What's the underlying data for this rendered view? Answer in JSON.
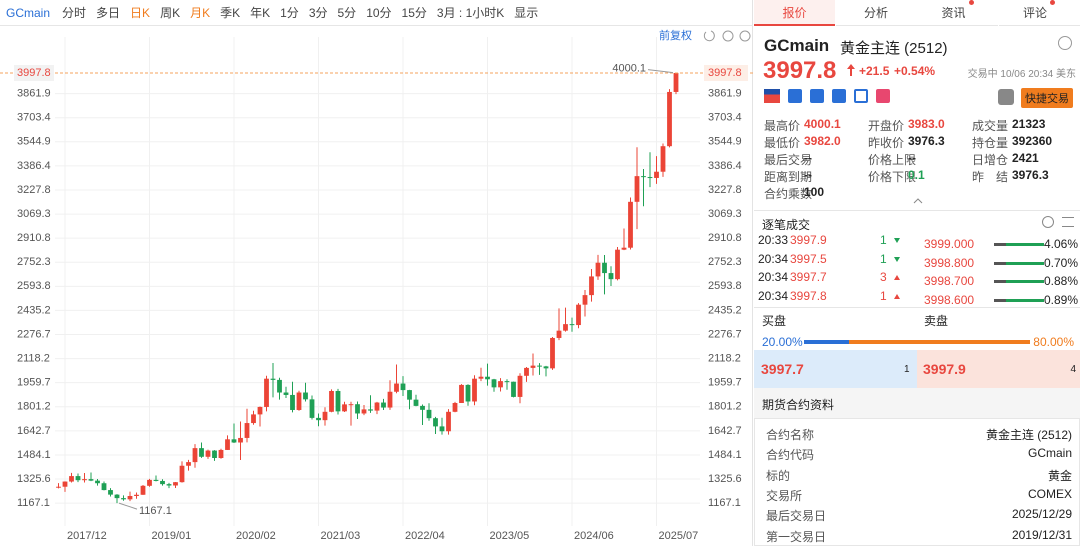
{
  "toolbar": {
    "symbol": "GCmain",
    "items": [
      "分时",
      "多日",
      "日K",
      "周K",
      "月K",
      "季K",
      "年K",
      "1分",
      "3分",
      "5分",
      "10分",
      "15分",
      "3月 : 1小时K",
      "显示"
    ],
    "active_items": [
      2,
      4
    ]
  },
  "chart_data": {
    "type": "candlestick",
    "adjust_label": "前复权",
    "categories": [
      null,
      "2017/12",
      null,
      null,
      null,
      null,
      null,
      null,
      null,
      null,
      null,
      null,
      null,
      null,
      "2019/01",
      null,
      null,
      null,
      null,
      null,
      null,
      null,
      null,
      null,
      null,
      null,
      null,
      "2020/02",
      null,
      null,
      null,
      null,
      null,
      null,
      null,
      null,
      null,
      null,
      null,
      null,
      "2021/03",
      null,
      null,
      null,
      null,
      null,
      null,
      null,
      null,
      null,
      null,
      null,
      null,
      "2022/04",
      null,
      null,
      null,
      null,
      null,
      null,
      null,
      null,
      null,
      null,
      null,
      null,
      "2023/05",
      null,
      null,
      null,
      null,
      null,
      null,
      null,
      null,
      null,
      null,
      null,
      null,
      "2024/06",
      null,
      null,
      null,
      null,
      null,
      null,
      null,
      null,
      null,
      null,
      null,
      null,
      "2025/07",
      null,
      null,
      null
    ],
    "open": [
      1271,
      1275,
      1309,
      1345,
      1318,
      1325,
      1315,
      1298,
      1253,
      1223,
      1200,
      1192,
      1214,
      1222,
      1281,
      1320,
      1313,
      1292,
      1283,
      1305,
      1413,
      1437,
      1529,
      1472,
      1513,
      1464,
      1517,
      1587,
      1566,
      1596,
      1694,
      1751,
      1800,
      1986,
      1978,
      1895,
      1879,
      1780,
      1895,
      1850,
      1728,
      1713,
      1768,
      1905,
      1771,
      1817,
      1818,
      1757,
      1784,
      1776,
      1829,
      1796,
      1900,
      1954,
      1911,
      1848,
      1807,
      1781,
      1726,
      1672,
      1640,
      1768,
      1826,
      1945,
      1836,
      1986,
      1999,
      1982,
      1929,
      1970,
      1966,
      1866,
      2005,
      2057,
      2072,
      2067,
      2054,
      2254,
      2302,
      2345,
      2339,
      2473,
      2536,
      2659,
      2749,
      2681,
      2641,
      2835,
      2848,
      3150,
      3319,
      3313,
      3307,
      3348,
      3516,
      3873
    ],
    "high": [
      1299,
      1310,
      1366,
      1362,
      1365,
      1369,
      1326,
      1309,
      1266,
      1226,
      1218,
      1243,
      1237,
      1286,
      1327,
      1349,
      1324,
      1300,
      1306,
      1442,
      1452,
      1555,
      1566,
      1519,
      1516,
      1525,
      1613,
      1691,
      1704,
      1788,
      1775,
      1803,
      2005,
      2089,
      1992,
      1933,
      1966,
      1907,
      1959,
      1875,
      1757,
      1798,
      1916,
      1919,
      1834,
      1834,
      1836,
      1813,
      1877,
      1833,
      1853,
      1976,
      2079,
      2003,
      1912,
      1880,
      1816,
      1824,
      1735,
      1729,
      1786,
      1833,
      1950,
      1949,
      2009,
      2058,
      2085,
      1985,
      1990,
      1982,
      1967,
      2022,
      2063,
      2152,
      2088,
      2070,
      2260,
      2449,
      2454,
      2388,
      2483,
      2570,
      2708,
      2801,
      2800,
      2726,
      2853,
      2974,
      3178,
      3509,
      3366,
      3476,
      3451,
      3534,
      3892,
      4000.1
    ],
    "low": [
      1264,
      1241,
      1303,
      1305,
      1303,
      1312,
      1282,
      1251,
      1211,
      1167.1,
      1183,
      1180,
      1196,
      1221,
      1275,
      1310,
      1282,
      1266,
      1267,
      1302,
      1381,
      1400,
      1465,
      1458,
      1445,
      1459,
      1517,
      1563,
      1451,
      1567,
      1683,
      1671,
      1771,
      1863,
      1848,
      1859,
      1764,
      1775,
      1836,
      1717,
      1673,
      1677,
      1765,
      1750,
      1767,
      1677,
      1721,
      1746,
      1761,
      1753,
      1780,
      1781,
      1890,
      1872,
      1785,
      1805,
      1681,
      1709,
      1622,
      1618,
      1618,
      1765,
      1826,
      1808,
      1811,
      1970,
      1940,
      1900,
      1902,
      1913,
      1863,
      1824,
      1965,
      2007,
      2011,
      2001,
      2044,
      2240,
      2296,
      2295,
      2318,
      2395,
      2493,
      2636,
      2541,
      2596,
      2633,
      2832,
      2836,
      2970,
      3121,
      3247,
      3268,
      3314,
      3508,
      3859
    ],
    "close": [
      1275,
      1309,
      1345,
      1318,
      1325,
      1315,
      1298,
      1253,
      1223,
      1200,
      1192,
      1214,
      1222,
      1281,
      1320,
      1313,
      1292,
      1283,
      1305,
      1413,
      1437,
      1529,
      1472,
      1513,
      1464,
      1517,
      1587,
      1566,
      1596,
      1694,
      1751,
      1800,
      1986,
      1978,
      1895,
      1879,
      1780,
      1895,
      1850,
      1728,
      1713,
      1768,
      1905,
      1771,
      1817,
      1818,
      1757,
      1784,
      1776,
      1829,
      1796,
      1900,
      1954,
      1911,
      1848,
      1807,
      1781,
      1726,
      1672,
      1640,
      1768,
      1826,
      1945,
      1836,
      1986,
      1999,
      1982,
      1929,
      1970,
      1966,
      1866,
      2005,
      2057,
      2072,
      2067,
      2054,
      2254,
      2302,
      2345,
      2339,
      2473,
      2536,
      2659,
      2749,
      2681,
      2641,
      2835,
      2848,
      3150,
      3319,
      3313,
      3307,
      3348,
      3516,
      3873,
      3997.8
    ],
    "up_color": "#eb4436",
    "down_color": "#1fa055",
    "last_price_color": "#f5a35c",
    "ylim": [
      1056,
      4182
    ],
    "yticks": [
      1167.1,
      1325.6,
      1484.1,
      1642.7,
      1801.2,
      1959.7,
      2118.2,
      2276.7,
      2435.2,
      2593.8,
      2752.3,
      2910.8,
      3069.3,
      3227.8,
      3386.4,
      3544.9,
      3703.4,
      3861.9
    ],
    "grid": true
  },
  "panel": {
    "tabs": [
      "报价",
      "分析",
      "资讯",
      "评论"
    ],
    "quote": {
      "code": "GCmain",
      "name": "黄金主连 (2512)",
      "price": "3997.8",
      "change": "+21.5",
      "change_pct": "+0.54%",
      "status": "交易中 10/06 20:34 美东",
      "trade_button": "快捷交易"
    },
    "stats": [
      [
        {
          "label": "最高价",
          "value": "4000.1",
          "tone": "up"
        },
        {
          "label": "开盘价",
          "value": "3983.0",
          "tone": "up"
        },
        {
          "label": "成交量",
          "value": "21323",
          "tone": "flat"
        }
      ],
      [
        {
          "label": "最低价",
          "value": "3982.0",
          "tone": "up"
        },
        {
          "label": "昨收价",
          "value": "3976.3",
          "tone": "flat"
        },
        {
          "label": "持仓量",
          "value": "392360",
          "tone": "flat"
        }
      ],
      [
        {
          "label": "最后交易",
          "value": "--",
          "tone": "flat"
        },
        {
          "label": "价格上限",
          "value": "--",
          "tone": "flat"
        },
        {
          "label": "日增仓",
          "value": "2421",
          "tone": "flat"
        }
      ],
      [
        {
          "label": "距离到期",
          "value": "--",
          "tone": "flat"
        },
        {
          "label": "价格下限",
          "value": "0.1",
          "tone": "down"
        },
        {
          "label": "昨　结",
          "value": "3976.3",
          "tone": "flat"
        }
      ],
      [
        {
          "label": "合约乘数",
          "value": "100",
          "tone": "flat"
        }
      ]
    ],
    "ticks": {
      "title": "逐笔成交",
      "rows": [
        {
          "time": "20:33",
          "price": "3997.9",
          "volume": "1",
          "direction": "down"
        },
        {
          "time": "20:34",
          "price": "3997.5",
          "volume": "1",
          "direction": "down"
        },
        {
          "time": "20:34",
          "price": "3997.7",
          "volume": "3",
          "direction": "up"
        },
        {
          "time": "20:34",
          "price": "3997.8",
          "volume": "1",
          "direction": "up"
        }
      ]
    },
    "depth": [
      {
        "price": "3999.000",
        "ratio": "4.06%"
      },
      {
        "price": "3998.800",
        "ratio": "0.70%"
      },
      {
        "price": "3998.700",
        "ratio": "0.88%"
      },
      {
        "price": "3998.600",
        "ratio": "0.89%"
      }
    ],
    "book": {
      "buy_label": "买盘",
      "sell_label": "卖盘",
      "buy_ratio": "20.00%",
      "sell_ratio": "80.00%",
      "bid": "3997.7",
      "bid_size": "1",
      "ask": "3997.9",
      "ask_size": "4"
    },
    "contract": {
      "title": "期货合约资料",
      "rows": [
        [
          "合约名称",
          "黄金主连 (2512)"
        ],
        [
          "合约代码",
          "GCmain"
        ],
        [
          "标的",
          "黄金"
        ],
        [
          "交易所",
          "COMEX"
        ],
        [
          "最后交易日",
          "2025/12/29"
        ],
        [
          "第一交易日",
          "2019/12/31"
        ]
      ]
    }
  }
}
